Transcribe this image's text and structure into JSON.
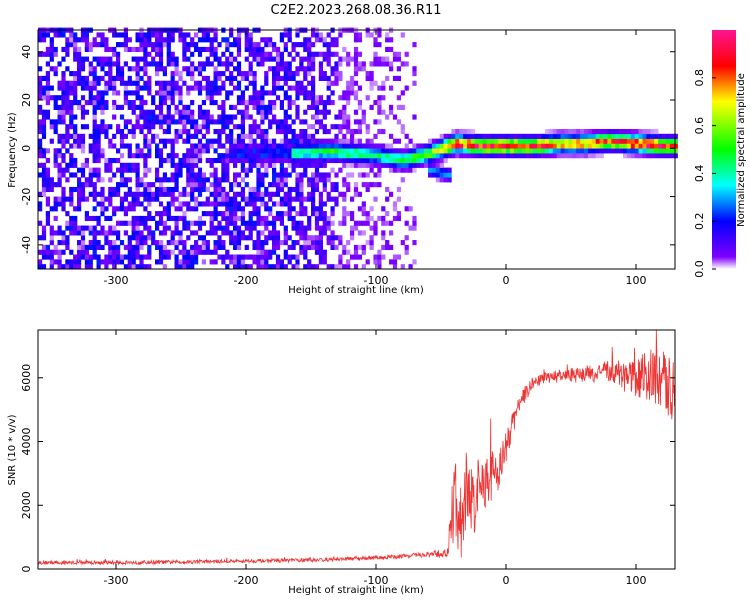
{
  "title": "C2E2.2023.268.08.36.R11",
  "chart_data": [
    {
      "type": "heatmap",
      "name": "spectrogram",
      "xlabel": "Height of straight line (km)",
      "ylabel": "Frequency (Hz)",
      "xlim": [
        -360,
        130
      ],
      "ylim": [
        -50,
        49
      ],
      "xticks": [
        -300,
        -200,
        -100,
        0,
        100
      ],
      "yticks": [
        -40,
        -20,
        0,
        20,
        40
      ],
      "colorbar": {
        "label": "Normalized spectral amplitude",
        "range": [
          0,
          1
        ],
        "ticks": [
          0.0,
          0.2,
          0.4,
          0.6,
          0.8
        ],
        "colormap": [
          "#ffffff",
          "#7f00ff",
          "#0000ff",
          "#00ffff",
          "#00ff00",
          "#ffff00",
          "#ff0000",
          "#ff1493"
        ]
      },
      "signal_track": {
        "description_values_x": [
          -160,
          -140,
          -120,
          -100,
          -80,
          -60,
          -40,
          -20,
          0,
          20,
          40,
          60,
          80,
          100,
          120,
          130
        ],
        "frequency_center": [
          -3,
          -2,
          -3,
          -4,
          -6,
          -3,
          1,
          0,
          0,
          0,
          1,
          1,
          2,
          1,
          0,
          0
        ],
        "peak_amplitude": [
          0.45,
          0.5,
          0.5,
          0.45,
          0.5,
          0.6,
          0.95,
          0.95,
          0.95,
          0.95,
          0.8,
          0.85,
          0.9,
          0.95,
          0.95,
          0.85
        ]
      },
      "noise_region_x": [
        -360,
        -70
      ],
      "branch_x": [
        -60,
        -45
      ],
      "branch_frequency": [
        -10,
        -12
      ]
    },
    {
      "type": "line",
      "name": "snr",
      "xlabel": "Height of straight line (km)",
      "ylabel": "SNR (10 * v/v)",
      "xlim": [
        -360,
        130
      ],
      "ylim": [
        0,
        7500
      ],
      "xticks": [
        -300,
        -200,
        -100,
        0,
        100
      ],
      "yticks": [
        0,
        2000,
        4000,
        6000
      ],
      "color": "#ee3333",
      "x": [
        -360,
        -300,
        -250,
        -200,
        -150,
        -100,
        -80,
        -60,
        -45,
        -40,
        -35,
        -30,
        -25,
        -20,
        -15,
        -10,
        -5,
        0,
        5,
        10,
        20,
        30,
        40,
        60,
        80,
        100,
        110,
        120,
        130
      ],
      "y": [
        200,
        200,
        220,
        250,
        280,
        350,
        400,
        450,
        500,
        2000,
        1500,
        2500,
        2200,
        2500,
        2800,
        3000,
        3200,
        3800,
        4500,
        5200,
        5800,
        6000,
        6050,
        6100,
        6200,
        6000,
        6100,
        5900,
        5600
      ],
      "noise_amplitude": [
        60,
        60,
        60,
        60,
        60,
        60,
        70,
        80,
        150,
        1600,
        1200,
        1400,
        1200,
        1000,
        900,
        800,
        700,
        500,
        400,
        300,
        200,
        180,
        200,
        250,
        350,
        600,
        800,
        1000,
        1000
      ]
    }
  ]
}
